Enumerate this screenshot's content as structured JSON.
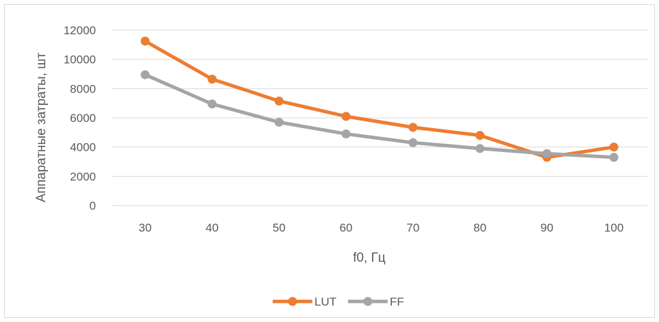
{
  "chart_data": {
    "type": "line",
    "title": "",
    "xlabel": "f0, Гц",
    "ylabel": "Аппаратные затраты, шт",
    "categories": [
      "30",
      "40",
      "50",
      "60",
      "70",
      "80",
      "90",
      "100"
    ],
    "ylim": [
      0,
      12000
    ],
    "yticks": [
      0,
      2000,
      4000,
      6000,
      8000,
      10000,
      12000
    ],
    "ytick_labels": [
      "0",
      "2000",
      "4000",
      "6000",
      "8000",
      "10000",
      "12000"
    ],
    "grid": true,
    "legend_position": "bottom",
    "series": [
      {
        "name": "LUT",
        "color": "#ED7D31",
        "values": [
          11250,
          8650,
          7150,
          6100,
          5350,
          4800,
          3300,
          4000
        ]
      },
      {
        "name": "FF",
        "color": "#A5A5A5",
        "values": [
          8950,
          6950,
          5700,
          4900,
          4300,
          3900,
          3550,
          3300
        ]
      }
    ]
  }
}
